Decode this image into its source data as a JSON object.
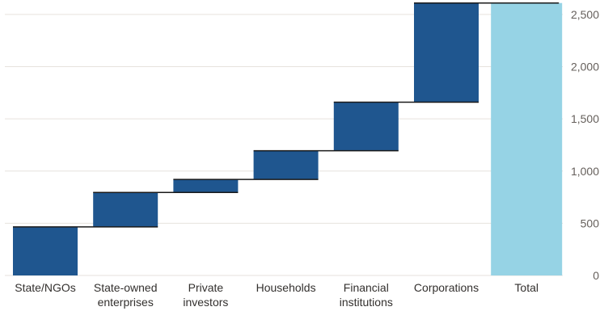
{
  "chart_data": {
    "type": "bar",
    "subtype": "waterfall",
    "categories": [
      [
        "State/NGOs"
      ],
      [
        "State-owned",
        "enterprises"
      ],
      [
        "Private",
        "investors"
      ],
      [
        "Households"
      ],
      [
        "Financial",
        "institutions"
      ],
      [
        "Corporations"
      ],
      [
        "Total"
      ]
    ],
    "values": [
      465,
      330,
      125,
      275,
      465,
      950,
      2610
    ],
    "ylim": [
      0,
      2600
    ],
    "yticks": [
      0,
      500,
      1000,
      1500,
      2000,
      2500
    ],
    "ytick_labels": [
      "0",
      "500",
      "1,000",
      "1,500",
      "2,000",
      "2,500"
    ],
    "grid": true,
    "y_axis_side": "right",
    "colors": {
      "step": "#1f568f",
      "total": "#96d3e5",
      "connector": "#1a1a1a",
      "grid": "#e6e2dd"
    }
  }
}
